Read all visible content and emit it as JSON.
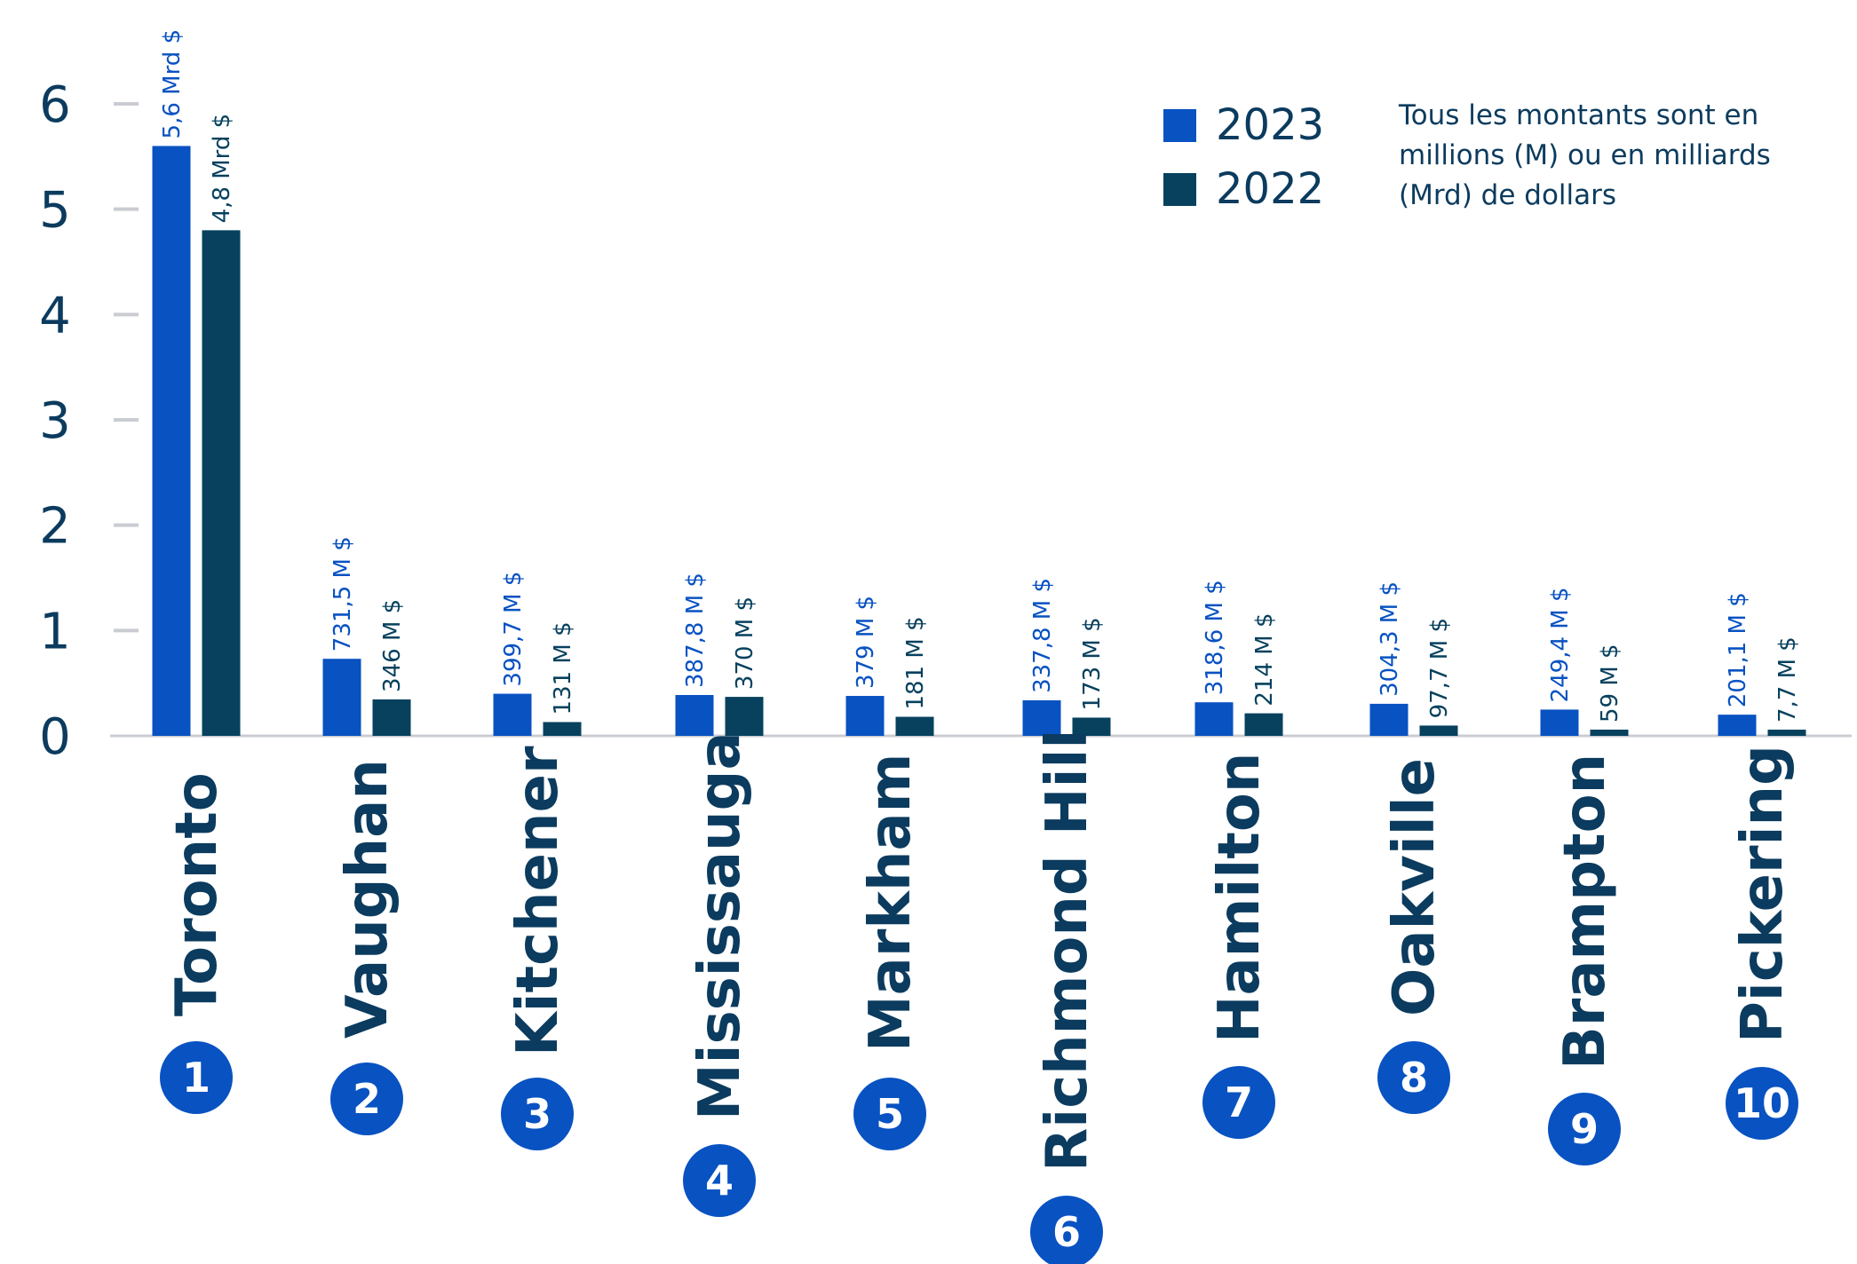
{
  "chart_data": {
    "type": "bar",
    "categories": [
      "Toronto",
      "Vaughan",
      "Kitchener",
      "Mississauga",
      "Markham",
      "Richmond Hill",
      "Hamilton",
      "Oakville",
      "Brampton",
      "Pickering"
    ],
    "ranks": [
      "1",
      "2",
      "3",
      "4",
      "5",
      "6",
      "7",
      "8",
      "9",
      "10"
    ],
    "series": [
      {
        "name": "2023",
        "color": "#0852c2",
        "values": [
          5.6,
          0.7315,
          0.3997,
          0.3878,
          0.379,
          0.3378,
          0.3186,
          0.3043,
          0.2494,
          0.2011
        ],
        "labels": [
          "5,6 Mrd $",
          "731,5 M $",
          "399,7 M $",
          "387,8 M $",
          "379 M $",
          "337,8 M $",
          "318,6 M $",
          "304,3 M $",
          "249,4 M $",
          "201,1 M $"
        ]
      },
      {
        "name": "2022",
        "color": "#07415e",
        "values": [
          4.8,
          0.346,
          0.131,
          0.37,
          0.181,
          0.173,
          0.214,
          0.0977,
          0.059,
          0.0077
        ],
        "labels": [
          "4,8 Mrd $",
          "346 M $",
          "131 M $",
          "370 M $",
          "181 M $",
          "173 M $",
          "214 M $",
          "97,7 M $",
          "59 M $",
          "7,7 M $"
        ]
      }
    ],
    "yticks": [
      "0",
      "1",
      "2",
      "3",
      "4",
      "5",
      "6"
    ],
    "ylim": [
      0,
      6
    ],
    "xlabel": "",
    "ylabel": "",
    "legend_position": "top-right",
    "note": "Tous les montants sont en millions (M) ou en milliards (Mrd) de dollars",
    "colors": {
      "text": "#0b3b5e",
      "axis": "#c9ccd2",
      "rank_badge": "#0852c2"
    }
  }
}
